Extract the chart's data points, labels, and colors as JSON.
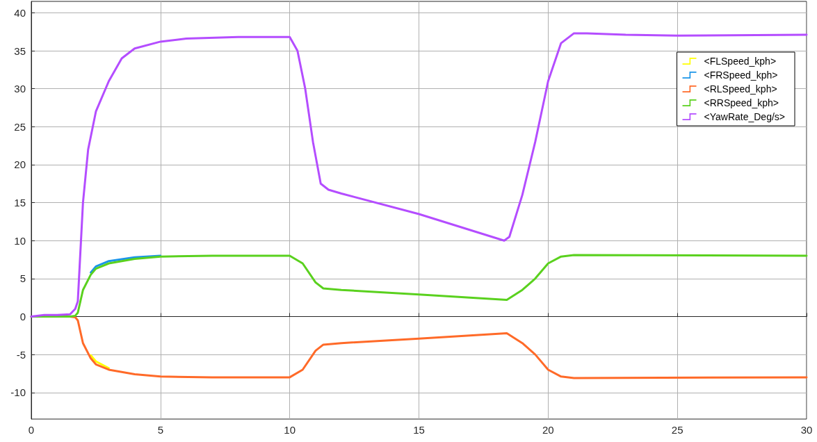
{
  "chart_data": {
    "type": "line",
    "x": [
      0,
      1.5,
      1.7,
      1.8,
      2.0,
      2.3,
      2.5,
      3,
      4,
      5,
      7,
      10,
      10.5,
      11,
      11.3,
      12,
      15,
      18.4,
      19,
      19.5,
      20,
      20.5,
      21,
      30
    ],
    "series": [
      {
        "name": "<FLSpeed_kph>",
        "color": "#ffff00",
        "values": [
          null,
          null,
          null,
          null,
          null,
          -5.1,
          -5.9,
          -6.8,
          null,
          null,
          null,
          null,
          null,
          null,
          null,
          null,
          null,
          null,
          null,
          null,
          null,
          null,
          null,
          null
        ]
      },
      {
        "name": "<FRSpeed_kph>",
        "color": "#1a95e8",
        "values": [
          null,
          null,
          null,
          null,
          null,
          5.8,
          6.6,
          7.3,
          7.8,
          8.0,
          null,
          null,
          null,
          null,
          null,
          null,
          null,
          null,
          null,
          null,
          null,
          null,
          null,
          null
        ]
      },
      {
        "name": "<RLSpeed_kph>",
        "color": "#ff6a28",
        "values": [
          0,
          0,
          -0.1,
          -0.5,
          -3.5,
          -5.5,
          -6.3,
          -7,
          -7.6,
          -7.9,
          -8,
          -8,
          -7,
          -4.5,
          -3.7,
          -3.5,
          -2.9,
          -2.2,
          -3.5,
          -5,
          -7,
          -7.9,
          -8.1,
          -8
        ]
      },
      {
        "name": "<RRSpeed_kph>",
        "color": "#5ad11e",
        "values": [
          0,
          0,
          0.1,
          0.5,
          3.5,
          5.5,
          6.3,
          7,
          7.6,
          7.9,
          8,
          8,
          7,
          4.5,
          3.7,
          3.5,
          2.9,
          2.2,
          3.5,
          5,
          7,
          7.9,
          8.1,
          8
        ]
      },
      {
        "name": "<YawRate_Deg/s>",
        "color": "#b44dff",
        "x": [
          0,
          0.5,
          1,
          1.5,
          1.7,
          1.8,
          2.0,
          2.2,
          2.5,
          3,
          3.5,
          4,
          5,
          6,
          8,
          10,
          10.3,
          10.6,
          10.9,
          11.2,
          11.5,
          12,
          15,
          18.3,
          18.5,
          19,
          19.5,
          20,
          20.5,
          21,
          21.5,
          23,
          25,
          30
        ],
        "values": [
          0,
          0.2,
          0.2,
          0.3,
          1,
          2,
          15,
          22,
          27,
          31,
          34,
          35.3,
          36.2,
          36.6,
          36.8,
          36.8,
          35,
          30,
          23,
          17.5,
          16.7,
          16.2,
          13.5,
          10,
          10.5,
          16,
          23,
          31,
          36,
          37.3,
          37.3,
          37.1,
          37,
          37.1
        ]
      }
    ],
    "xlim": [
      0,
      30
    ],
    "xticks": [
      0,
      5,
      10,
      15,
      20,
      25,
      30
    ],
    "ylim": [
      -13.5,
      41.5
    ],
    "yticks": [
      -10,
      -5,
      0,
      5,
      10,
      15,
      20,
      25,
      30,
      35,
      40
    ],
    "grid": true,
    "legend": "top right",
    "marker": "none",
    "line_style": "solid"
  }
}
